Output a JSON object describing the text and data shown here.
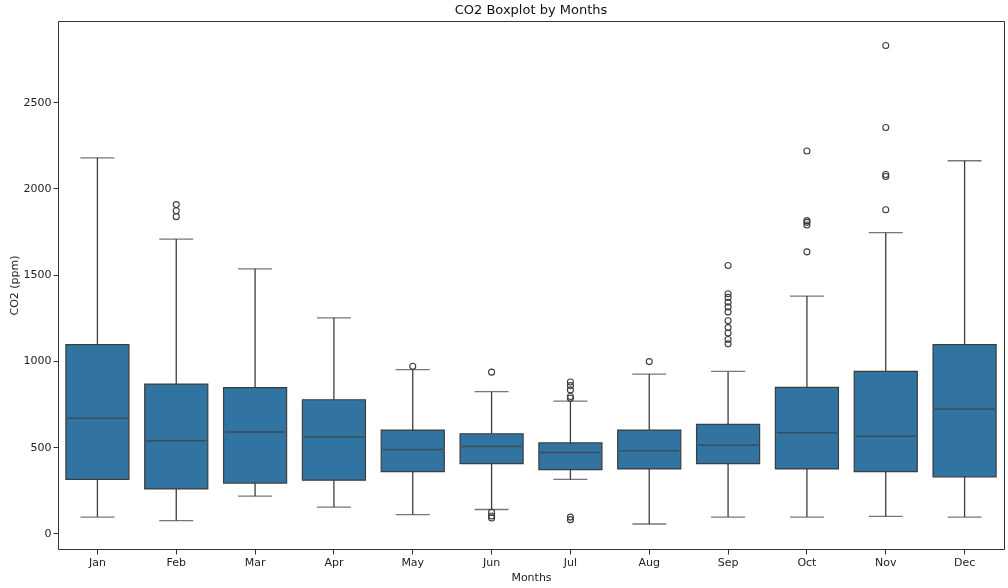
{
  "chart_data": {
    "type": "box",
    "title": "CO2 Boxplot by Months",
    "xlabel": "Months",
    "ylabel": "CO2 (ppm)",
    "categories": [
      "Jan",
      "Feb",
      "Mar",
      "Apr",
      "May",
      "Jun",
      "Jul",
      "Aug",
      "Sep",
      "Oct",
      "Nov",
      "Dec"
    ],
    "ylim": [
      -90,
      2970
    ],
    "yticks": [
      0,
      500,
      1000,
      1500,
      2000,
      2500
    ],
    "series": [
      {
        "color": "#3274a1",
        "boxes": [
          {
            "low": 95,
            "q1": 313,
            "median": 668,
            "q3": 1095,
            "high": 2177
          },
          {
            "low": 74,
            "q1": 258,
            "median": 538,
            "q3": 866,
            "high": 1706,
            "outliers": [
              1906,
              1870,
              1836
            ]
          },
          {
            "low": 216,
            "q1": 292,
            "median": 588,
            "q3": 845,
            "high": 1534
          },
          {
            "low": 153,
            "q1": 309,
            "median": 559,
            "q3": 775,
            "high": 1250
          },
          {
            "low": 109,
            "q1": 359,
            "median": 487,
            "q3": 599,
            "high": 950,
            "outliers": [
              969
            ]
          },
          {
            "low": 139,
            "q1": 405,
            "median": 504,
            "q3": 578,
            "high": 822,
            "outliers": [
              935,
              122,
              101,
              90
            ]
          },
          {
            "low": 313,
            "q1": 370,
            "median": 469,
            "q3": 525,
            "high": 767,
            "outliers": [
              878,
              857,
              832,
              794,
              784,
              95,
              80
            ]
          },
          {
            "low": 55,
            "q1": 374,
            "median": 479,
            "q3": 599,
            "high": 924,
            "outliers": [
              996
            ]
          },
          {
            "low": 95,
            "q1": 405,
            "median": 511,
            "q3": 632,
            "high": 939,
            "outliers": [
              1553,
              1389,
              1368,
              1340,
              1313,
              1284,
              1233,
              1193,
              1162,
              1124,
              1099
            ]
          },
          {
            "low": 95,
            "q1": 374,
            "median": 584,
            "q3": 847,
            "high": 1376,
            "outliers": [
              1632,
              1788,
              1803,
              1813,
              2217
            ]
          },
          {
            "low": 99,
            "q1": 359,
            "median": 563,
            "q3": 939,
            "high": 1744,
            "outliers": [
              1876,
              2069,
              2080,
              2353,
              2828
            ]
          },
          {
            "low": 95,
            "q1": 328,
            "median": 721,
            "q3": 1095,
            "high": 2160
          }
        ]
      }
    ]
  }
}
